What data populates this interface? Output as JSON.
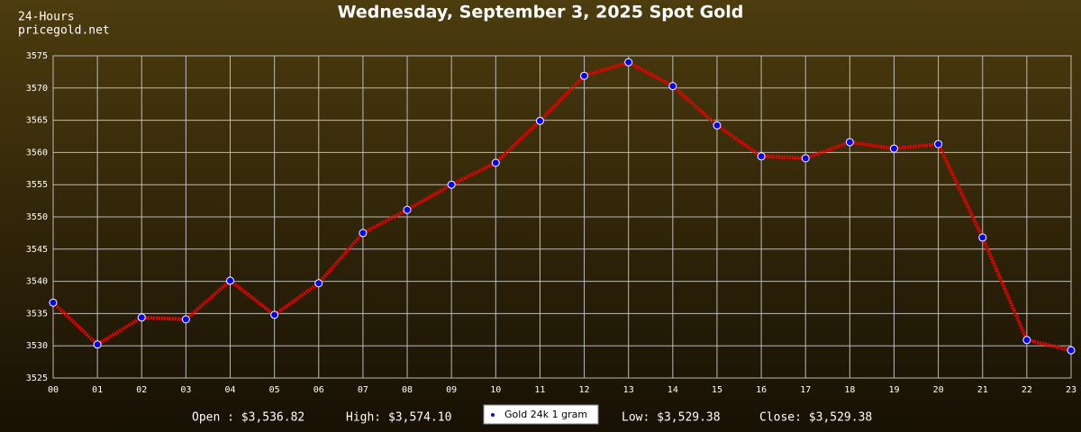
{
  "chart_data": {
    "type": "line",
    "title": "Wednesday, September 3, 2025 Spot Gold",
    "header": [
      "24-Hours",
      "pricegold.net"
    ],
    "categories": [
      "00",
      "01",
      "02",
      "03",
      "04",
      "05",
      "06",
      "07",
      "08",
      "09",
      "10",
      "11",
      "12",
      "13",
      "14",
      "15",
      "16",
      "17",
      "18",
      "19",
      "20",
      "21",
      "22",
      "23"
    ],
    "series": [
      {
        "name": "Gold 24k 1 gram",
        "color": "#ee0000",
        "marker_color": "#0000ff",
        "values": [
          3536.7,
          3530.2,
          3534.4,
          3534.1,
          3540.1,
          3534.8,
          3539.7,
          3547.5,
          3551.1,
          3555.0,
          3558.4,
          3564.9,
          3571.9,
          3574.0,
          3570.3,
          3564.2,
          3559.4,
          3559.1,
          3561.6,
          3560.6,
          3561.3,
          3546.8,
          3530.9,
          3529.3
        ]
      }
    ],
    "ylim": [
      3525,
      3575
    ],
    "yticks": [
      3525,
      3530,
      3535,
      3540,
      3545,
      3550,
      3555,
      3560,
      3565,
      3570,
      3575
    ],
    "grid": true,
    "stats": [
      "Open : $3,536.82",
      "High: $3,574.10",
      "Low: $3,529.38",
      "Close: $3,529.38"
    ]
  }
}
